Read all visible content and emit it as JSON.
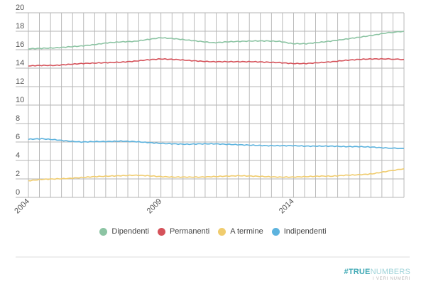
{
  "chart_data": {
    "type": "line",
    "title": "",
    "xlabel": "",
    "ylabel": "",
    "ylim": [
      0,
      20
    ],
    "yticks": [
      0,
      2,
      4,
      6,
      8,
      10,
      12,
      14,
      16,
      18,
      20
    ],
    "xticks": [
      "2004",
      "2009",
      "2014"
    ],
    "xlim": [
      2004.0,
      2018.2
    ],
    "grid": true,
    "legend_position": "bottom",
    "x": [
      2004.0,
      2004.5,
      2005.0,
      2005.5,
      2006.0,
      2006.5,
      2007.0,
      2007.5,
      2008.0,
      2008.5,
      2009.0,
      2009.5,
      2010.0,
      2010.5,
      2011.0,
      2011.5,
      2012.0,
      2012.5,
      2013.0,
      2013.5,
      2014.0,
      2014.5,
      2015.0,
      2015.5,
      2016.0,
      2016.5,
      2017.0,
      2017.5,
      2018.2
    ],
    "series": [
      {
        "name": "Dipendenti",
        "color": "#8cc4a3",
        "values": [
          16.1,
          16.15,
          16.2,
          16.3,
          16.4,
          16.55,
          16.75,
          16.85,
          16.9,
          17.1,
          17.3,
          17.2,
          17.05,
          16.9,
          16.75,
          16.85,
          16.9,
          16.95,
          16.95,
          16.9,
          16.65,
          16.65,
          16.8,
          16.95,
          17.15,
          17.35,
          17.55,
          17.8,
          18.0
        ]
      },
      {
        "name": "Permanenti",
        "color": "#d5525a",
        "values": [
          14.25,
          14.3,
          14.3,
          14.4,
          14.5,
          14.55,
          14.6,
          14.65,
          14.75,
          14.9,
          15.0,
          14.95,
          14.85,
          14.75,
          14.7,
          14.7,
          14.7,
          14.7,
          14.65,
          14.6,
          14.5,
          14.5,
          14.6,
          14.7,
          14.85,
          14.95,
          15.0,
          15.0,
          14.95
        ]
      },
      {
        "name": "A termine",
        "color": "#f0cc6e",
        "values": [
          1.8,
          1.95,
          2.0,
          2.05,
          2.15,
          2.25,
          2.3,
          2.35,
          2.4,
          2.35,
          2.25,
          2.2,
          2.2,
          2.2,
          2.25,
          2.3,
          2.35,
          2.3,
          2.25,
          2.2,
          2.2,
          2.25,
          2.3,
          2.3,
          2.4,
          2.45,
          2.55,
          2.8,
          3.1
        ]
      },
      {
        "name": "Indipendenti",
        "color": "#5db3de",
        "values": [
          6.3,
          6.35,
          6.25,
          6.1,
          6.0,
          6.05,
          6.05,
          6.1,
          6.05,
          5.95,
          5.85,
          5.8,
          5.75,
          5.8,
          5.8,
          5.75,
          5.7,
          5.65,
          5.6,
          5.6,
          5.6,
          5.55,
          5.55,
          5.55,
          5.5,
          5.5,
          5.45,
          5.35,
          5.3
        ]
      }
    ]
  },
  "legend": {
    "items": [
      {
        "label": "Dipendenti",
        "color": "#8cc4a3"
      },
      {
        "label": "Permanenti",
        "color": "#d5525a"
      },
      {
        "label": "A termine",
        "color": "#f0cc6e"
      },
      {
        "label": "Indipendenti",
        "color": "#5db3de"
      }
    ]
  },
  "brand": {
    "bold": "#TRUE",
    "light": "NUMBERS",
    "tagline": "I VERI NUMERI"
  }
}
